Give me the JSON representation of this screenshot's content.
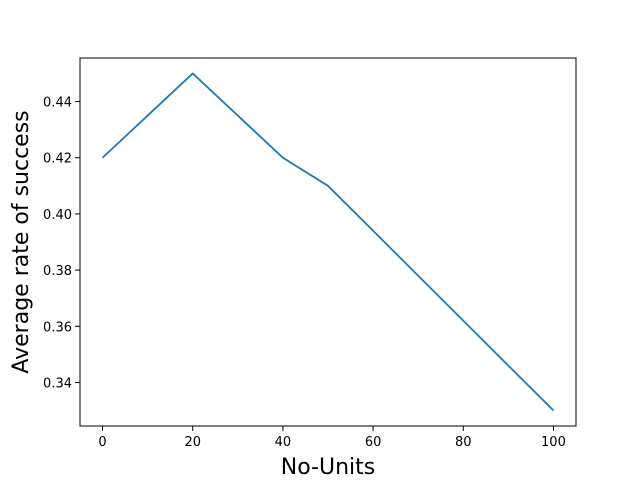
{
  "chart_data": {
    "type": "line",
    "title": "",
    "xlabel": "No-Units",
    "ylabel": "Average rate of success",
    "x": [
      0,
      20,
      40,
      50,
      100
    ],
    "series": [
      {
        "values": [
          0.42,
          0.45,
          0.42,
          0.41,
          0.33
        ],
        "color": "#1f77b4"
      }
    ],
    "xlim": [
      -5,
      105
    ],
    "ylim": [
      0.3245,
      0.4555
    ],
    "xticks": [
      0,
      20,
      40,
      60,
      80,
      100
    ],
    "xtick_labels": [
      "0",
      "20",
      "40",
      "60",
      "80",
      "100"
    ],
    "yticks": [
      0.34,
      0.36,
      0.38,
      0.4,
      0.42,
      0.44
    ],
    "ytick_labels": [
      "0.34",
      "0.36",
      "0.38",
      "0.40",
      "0.42",
      "0.44"
    ],
    "grid": false,
    "legend": "none"
  }
}
